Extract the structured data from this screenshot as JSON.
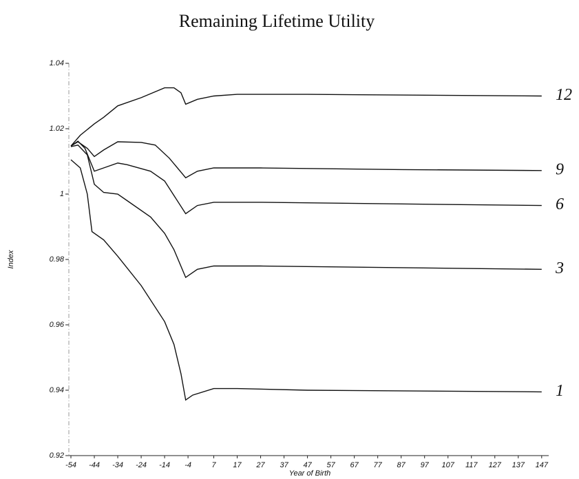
{
  "chart_data": {
    "type": "line",
    "title": "Remaining Lifetime Utility",
    "xlabel": "Year of Birth",
    "ylabel": "Index",
    "xlim": [
      -54,
      150
    ],
    "ylim": [
      0.92,
      1.04
    ],
    "xticks": [
      -54,
      -44,
      -34,
      -24,
      -14,
      -4,
      7,
      17,
      27,
      37,
      47,
      57,
      67,
      77,
      87,
      97,
      107,
      117,
      127,
      137,
      147
    ],
    "yticks": [
      0.92,
      0.94,
      0.96,
      0.98,
      1,
      1.02,
      1.04
    ],
    "color": "#111111",
    "series": [
      {
        "name": "12",
        "x": [
          -54,
          -50,
          -44,
          -40,
          -34,
          -24,
          -14,
          -10,
          -7,
          -5,
          0,
          7,
          17,
          47,
          87,
          147
        ],
        "values": [
          1.0147,
          1.018,
          1.0215,
          1.0235,
          1.027,
          1.0295,
          1.0325,
          1.0325,
          1.031,
          1.0275,
          1.029,
          1.03,
          1.0305,
          1.0305,
          1.0303,
          1.03
        ]
      },
      {
        "name": "9",
        "x": [
          -54,
          -51,
          -47,
          -44,
          -40,
          -34,
          -24,
          -18,
          -12,
          -5,
          0,
          7,
          27,
          87,
          147
        ],
        "values": [
          1.0147,
          1.016,
          1.014,
          1.0115,
          1.0135,
          1.016,
          1.0158,
          1.015,
          1.011,
          1.005,
          1.007,
          1.008,
          1.008,
          1.0075,
          1.0072
        ]
      },
      {
        "name": "6",
        "x": [
          -54,
          -51,
          -48,
          -44,
          -40,
          -34,
          -30,
          -20,
          -14,
          -5,
          0,
          7,
          27,
          87,
          147
        ],
        "values": [
          1.0147,
          1.0162,
          1.014,
          1.007,
          1.008,
          1.0095,
          1.009,
          1.007,
          1.004,
          0.994,
          0.9965,
          0.9975,
          0.9975,
          0.997,
          0.9965
        ]
      },
      {
        "name": "3",
        "x": [
          -54,
          -51,
          -47,
          -44,
          -40,
          -34,
          -30,
          -20,
          -14,
          -10,
          -5,
          0,
          7,
          27,
          87,
          147
        ],
        "values": [
          1.0145,
          1.015,
          1.012,
          1.003,
          1.0005,
          1.0,
          0.998,
          0.993,
          0.988,
          0.983,
          0.9745,
          0.977,
          0.978,
          0.978,
          0.9775,
          0.977
        ]
      },
      {
        "name": "1",
        "x": [
          -54,
          -50,
          -47,
          -45,
          -40,
          -34,
          -24,
          -14,
          -10,
          -7,
          -5,
          -2,
          7,
          17,
          47,
          147
        ],
        "values": [
          1.0105,
          1.008,
          1.0,
          0.9885,
          0.986,
          0.981,
          0.972,
          0.961,
          0.954,
          0.945,
          0.937,
          0.9385,
          0.9405,
          0.9405,
          0.94,
          0.9395
        ]
      }
    ]
  }
}
